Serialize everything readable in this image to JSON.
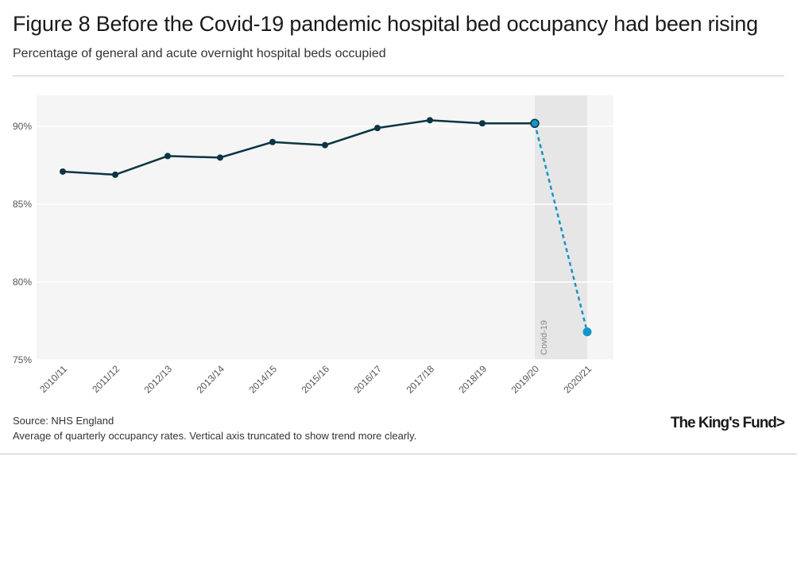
{
  "header": {
    "title": "Figure 8 Before the Covid-19 pandemic hospital bed occupancy had been rising",
    "subtitle": "Percentage of general and acute overnight hospital beds occupied"
  },
  "footer": {
    "source": "Source: NHS England",
    "note": "Average of quarterly occupancy rates. Vertical axis truncated to show trend more clearly.",
    "logo": "The King's Fund>"
  },
  "colors": {
    "line": "#0b3544",
    "highlight": "#1595c7",
    "plot_bg": "#f5f5f5",
    "shade": "#e6e6e6"
  },
  "chart_data": {
    "type": "line",
    "title": "Figure 8 Before the Covid-19 pandemic hospital bed occupancy had been rising",
    "subtitle": "Percentage of general and acute overnight hospital beds occupied",
    "categories": [
      "2010/11",
      "2011/12",
      "2012/13",
      "2013/14",
      "2014/15",
      "2015/16",
      "2016/17",
      "2017/18",
      "2018/19",
      "2019/20",
      "2020/21"
    ],
    "series": [
      {
        "values": [
          87.1,
          86.9,
          88.1,
          88.0,
          89.0,
          88.8,
          89.9,
          90.4,
          90.2,
          90.2,
          null
        ]
      },
      {
        "style": "dashed",
        "values": [
          null,
          null,
          null,
          null,
          null,
          null,
          null,
          null,
          null,
          90.2,
          76.8
        ]
      }
    ],
    "ylim": [
      75,
      92
    ],
    "yticks": [
      75,
      80,
      85,
      90
    ],
    "ytick_labels": [
      "75%",
      "80%",
      "85%",
      "90%"
    ],
    "grid": true,
    "annotation": {
      "label": "Covid-19",
      "region": [
        "2019/20",
        "2020/21"
      ]
    },
    "xlabel": "",
    "ylabel": ""
  }
}
